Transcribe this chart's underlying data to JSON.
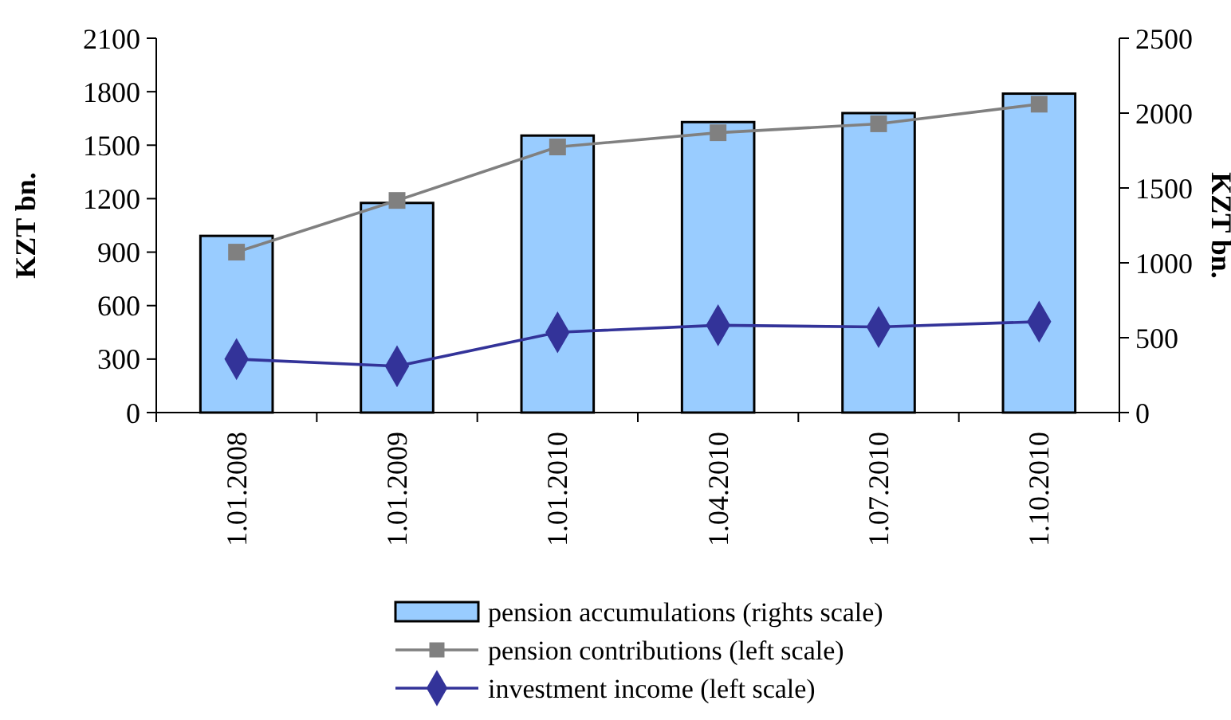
{
  "chart_data": {
    "type": "bar",
    "categories": [
      "1.01.2008",
      "1.01.2009",
      "1.01.2010",
      "1.04.2010",
      "1.07.2010",
      "1.10.2010"
    ],
    "series": [
      {
        "name": "pension accumulations (rights scale)",
        "axis": "y2",
        "color": "#99ccff",
        "values": [
          1180,
          1400,
          1850,
          1940,
          2000,
          2130
        ]
      },
      {
        "name": "pension contributions (left scale)",
        "type": "line",
        "color": "#808080",
        "marker": "square",
        "values": [
          900,
          1190,
          1490,
          1570,
          1620,
          1730
        ]
      },
      {
        "name": "investment income (left scale)",
        "type": "line",
        "color": "#333399",
        "marker": "diamond",
        "values": [
          300,
          260,
          450,
          490,
          480,
          510
        ]
      }
    ],
    "ylabel": "KZT bn.",
    "y2label": "KZT bn.",
    "ylim": [
      0,
      2100
    ],
    "yticks": [
      0,
      300,
      600,
      900,
      1200,
      1500,
      1800,
      2100
    ],
    "y2lim": [
      0,
      2500
    ],
    "y2ticks": [
      0,
      500,
      1000,
      1500,
      2000,
      2500
    ],
    "legend": "bottom",
    "grid": false
  }
}
